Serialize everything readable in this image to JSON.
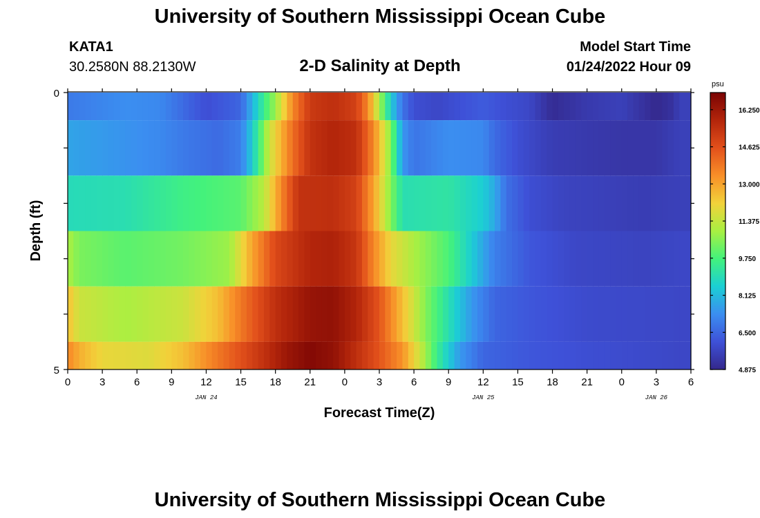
{
  "header": {
    "title": "University of Southern Mississippi Ocean Cube",
    "station_name": "KATA1",
    "station_coords": "30.2580N  88.2130W",
    "plot_title": "2-D Salinity at Depth",
    "model_label": "Model Start Time",
    "model_time": "01/24/2022 Hour 09"
  },
  "footer": {
    "title": "University of Southern Mississippi Ocean Cube"
  },
  "chart_data": {
    "type": "heatmap",
    "xlabel": "Forecast Time(Z)",
    "ylabel": "Depth (ft)",
    "x_tick_labels": [
      "0",
      "3",
      "6",
      "9",
      "12",
      "15",
      "18",
      "21",
      "0",
      "3",
      "6",
      "9",
      "12",
      "15",
      "18",
      "21",
      "0",
      "3",
      "6"
    ],
    "date_labels": [
      "JAN 24",
      "JAN 25",
      "JAN 26"
    ],
    "date_label_hours": [
      12,
      36,
      51
    ],
    "x_range_hours": [
      0,
      54
    ],
    "y_tick_labels": [
      "0",
      "5"
    ],
    "ylim": [
      0,
      5
    ],
    "colorbar": {
      "unit": "psu",
      "min": 4.875,
      "max": 17.0,
      "tick_values": [
        4.875,
        6.5,
        8.125,
        9.75,
        11.375,
        13.0,
        14.625,
        16.25
      ],
      "tick_labels": [
        "4.875",
        "6.500",
        "8.125",
        "9.750",
        "11.375",
        "13.000",
        "14.625",
        "16.250"
      ],
      "colors": [
        "#34288c",
        "#3e51d8",
        "#3b8ef0",
        "#1bcfd4",
        "#43f27c",
        "#a8f042",
        "#f2d23a",
        "#f88f28",
        "#e2501b",
        "#b3250b",
        "#7a0403"
      ]
    },
    "depth_layers": [
      {
        "depth_top": 0,
        "depth_bottom": 0.5,
        "profile": [
          [
            0,
            6.9
          ],
          [
            5,
            7.3
          ],
          [
            8,
            7.2
          ],
          [
            12,
            6.0
          ],
          [
            15,
            6.5
          ],
          [
            17,
            9.5
          ],
          [
            18,
            10.8
          ],
          [
            19.5,
            13.5
          ],
          [
            21,
            15.2
          ],
          [
            23,
            15.5
          ],
          [
            25,
            15.0
          ],
          [
            26,
            13.5
          ],
          [
            27,
            11.0
          ],
          [
            28,
            8.5
          ],
          [
            29,
            6.8
          ],
          [
            30,
            6.0
          ],
          [
            32,
            5.8
          ],
          [
            36,
            6.3
          ],
          [
            38,
            6.0
          ],
          [
            40,
            5.8
          ],
          [
            41,
            5.4
          ],
          [
            42,
            5.0
          ],
          [
            45,
            5.4
          ],
          [
            48,
            5.6
          ],
          [
            51,
            4.9
          ],
          [
            52.5,
            5.2
          ],
          [
            53,
            5.6
          ]
        ]
      },
      {
        "depth_top": 0.5,
        "depth_bottom": 1.5,
        "profile": [
          [
            0,
            7.7
          ],
          [
            5,
            7.4
          ],
          [
            8,
            7.2
          ],
          [
            10,
            6.9
          ],
          [
            13,
            6.6
          ],
          [
            15,
            7.0
          ],
          [
            16,
            8.5
          ],
          [
            17.5,
            11.5
          ],
          [
            19.5,
            14.0
          ],
          [
            21,
            15.4
          ],
          [
            23,
            15.8
          ],
          [
            25,
            15.5
          ],
          [
            26.5,
            13.5
          ],
          [
            28,
            10.5
          ],
          [
            29,
            7.5
          ],
          [
            30,
            6.8
          ],
          [
            33,
            7.3
          ],
          [
            36,
            7.2
          ],
          [
            37,
            6.6
          ],
          [
            39,
            6.0
          ],
          [
            42,
            5.5
          ],
          [
            45,
            5.4
          ],
          [
            48,
            5.3
          ],
          [
            51,
            5.3
          ],
          [
            53,
            5.6
          ]
        ]
      },
      {
        "depth_top": 1.5,
        "depth_bottom": 2.5,
        "profile": [
          [
            0,
            8.9
          ],
          [
            5,
            9.0
          ],
          [
            10,
            9.6
          ],
          [
            15,
            10.0
          ],
          [
            17,
            11.2
          ],
          [
            18.5,
            13.5
          ],
          [
            20,
            15.4
          ],
          [
            23,
            15.5
          ],
          [
            25,
            15.0
          ],
          [
            26.5,
            13.0
          ],
          [
            28,
            10.5
          ],
          [
            29,
            9.0
          ],
          [
            33,
            9.2
          ],
          [
            36,
            8.5
          ],
          [
            37,
            7.8
          ],
          [
            38,
            6.7
          ],
          [
            40,
            6.0
          ],
          [
            43,
            5.7
          ],
          [
            50,
            5.5
          ],
          [
            53,
            5.6
          ]
        ]
      },
      {
        "depth_top": 2.5,
        "depth_bottom": 3.5,
        "profile": [
          [
            0,
            11.0
          ],
          [
            1,
            10.4
          ],
          [
            5,
            10.0
          ],
          [
            10,
            10.3
          ],
          [
            14,
            10.8
          ],
          [
            16,
            13.0
          ],
          [
            18,
            14.8
          ],
          [
            21,
            15.8
          ],
          [
            23,
            15.9
          ],
          [
            25,
            15.3
          ],
          [
            26.5,
            13.5
          ],
          [
            28,
            12.0
          ],
          [
            30,
            11.0
          ],
          [
            33,
            9.8
          ],
          [
            35,
            8.5
          ],
          [
            37,
            7.0
          ],
          [
            40,
            6.2
          ],
          [
            44,
            5.8
          ],
          [
            50,
            5.7
          ],
          [
            53,
            5.8
          ]
        ]
      },
      {
        "depth_top": 3.5,
        "depth_bottom": 4.5,
        "profile": [
          [
            0,
            12.5
          ],
          [
            1,
            11.5
          ],
          [
            5,
            11.0
          ],
          [
            10,
            11.5
          ],
          [
            13,
            12.5
          ],
          [
            15,
            13.8
          ],
          [
            18,
            15.5
          ],
          [
            21,
            16.4
          ],
          [
            23,
            16.5
          ],
          [
            25,
            15.8
          ],
          [
            27,
            14.5
          ],
          [
            29,
            12.5
          ],
          [
            31,
            10.5
          ],
          [
            33,
            9.0
          ],
          [
            35,
            7.5
          ],
          [
            37,
            6.5
          ],
          [
            40,
            6.2
          ],
          [
            45,
            5.9
          ],
          [
            53,
            5.8
          ]
        ]
      },
      {
        "depth_top": 4.5,
        "depth_bottom": 5.0,
        "profile": [
          [
            0,
            13.5
          ],
          [
            1,
            12.8
          ],
          [
            3,
            12.0
          ],
          [
            7,
            11.8
          ],
          [
            10,
            12.5
          ],
          [
            13,
            13.8
          ],
          [
            16,
            15.0
          ],
          [
            19,
            16.3
          ],
          [
            21,
            16.8
          ],
          [
            23,
            16.5
          ],
          [
            25,
            15.5
          ],
          [
            27,
            14.5
          ],
          [
            29,
            13.3
          ],
          [
            30.5,
            11.5
          ],
          [
            32,
            9.5
          ],
          [
            34,
            7.5
          ],
          [
            36,
            6.5
          ],
          [
            40,
            6.2
          ],
          [
            45,
            6.0
          ],
          [
            53,
            5.8
          ]
        ]
      }
    ]
  }
}
